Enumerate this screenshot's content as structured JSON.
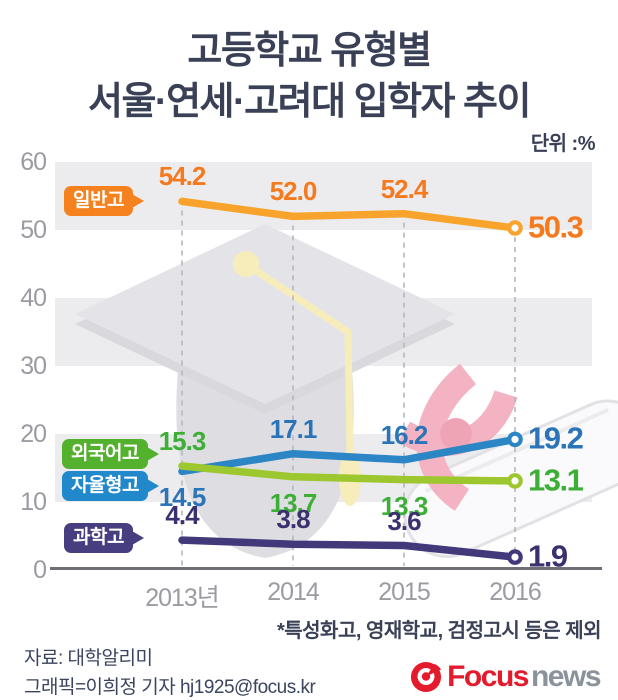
{
  "title": {
    "line1": "고등학교 유형별",
    "line2": "서울·연세·고려대 입학자 추이"
  },
  "unit_label": "단위 :%",
  "chart_data": {
    "type": "line",
    "x": [
      "2013년",
      "2014",
      "2015",
      "2016"
    ],
    "series": [
      {
        "name": "일반고",
        "values": [
          54.2,
          52.0,
          52.4,
          50.3
        ],
        "value_labels": [
          "54.2",
          "52.0",
          "52.4",
          "50.3"
        ],
        "line_color": "#F8A42C",
        "text_color": "#F5791D",
        "box_color": "#F5821F",
        "label_pos": [
          "above",
          "above",
          "above",
          "end"
        ]
      },
      {
        "name": "외국어고",
        "values": [
          15.3,
          13.7,
          13.3,
          13.1
        ],
        "value_labels": [
          "15.3",
          "13.7",
          "13.3",
          "13.1"
        ],
        "line_color": "#9DC72F",
        "text_color": "#3DAE36",
        "box_color": "#53B12D",
        "label_pos": [
          "above",
          "below",
          "below",
          "end"
        ]
      },
      {
        "name": "자율형고",
        "values": [
          14.5,
          17.1,
          16.2,
          19.2
        ],
        "value_labels": [
          "14.5",
          "17.1",
          "16.2",
          "19.2"
        ],
        "line_color": "#2C86C5",
        "text_color": "#2B74B8",
        "box_color": "#2088CB",
        "label_pos": [
          "below",
          "above",
          "above",
          "end"
        ]
      },
      {
        "name": "과학고",
        "values": [
          4.4,
          3.8,
          3.6,
          1.9
        ],
        "value_labels": [
          "4.4",
          "3.8",
          "3.6",
          "1.9"
        ],
        "line_color": "#41397A",
        "text_color": "#3A326E",
        "box_color": "#473E80",
        "label_pos": [
          "above",
          "above",
          "above",
          "end"
        ]
      }
    ],
    "yticks": [
      60,
      50,
      40,
      30,
      20,
      10,
      0
    ],
    "ylim": [
      0,
      60
    ],
    "grid": "alternating-gray-bands",
    "legend_position": "inline-left-label-boxes",
    "end_markers": "open-circles"
  },
  "footer": {
    "footnote": "*특성화고, 영재학교, 검정고시 등은 제외",
    "source": "자료: 대학알리미",
    "credit": "그래픽=이희정 기자 hj1925@focus.kr",
    "logo": {
      "brand": "Focus",
      "suffix": "news"
    }
  },
  "colors": {
    "title_text": "#3A4156",
    "axis_text": "#9B9BA2",
    "band": "#ECECEF",
    "baseline": "#6F6F75",
    "dashed": "#B6B6BE",
    "footer_text": "#3C4560",
    "logo_red": "#E31B2D",
    "logo_gray": "#8A929C",
    "watermark_gray": "#E4E4E8",
    "watermark_yellow": "#F6EDBB",
    "watermark_pink": "#F4B3C3"
  }
}
